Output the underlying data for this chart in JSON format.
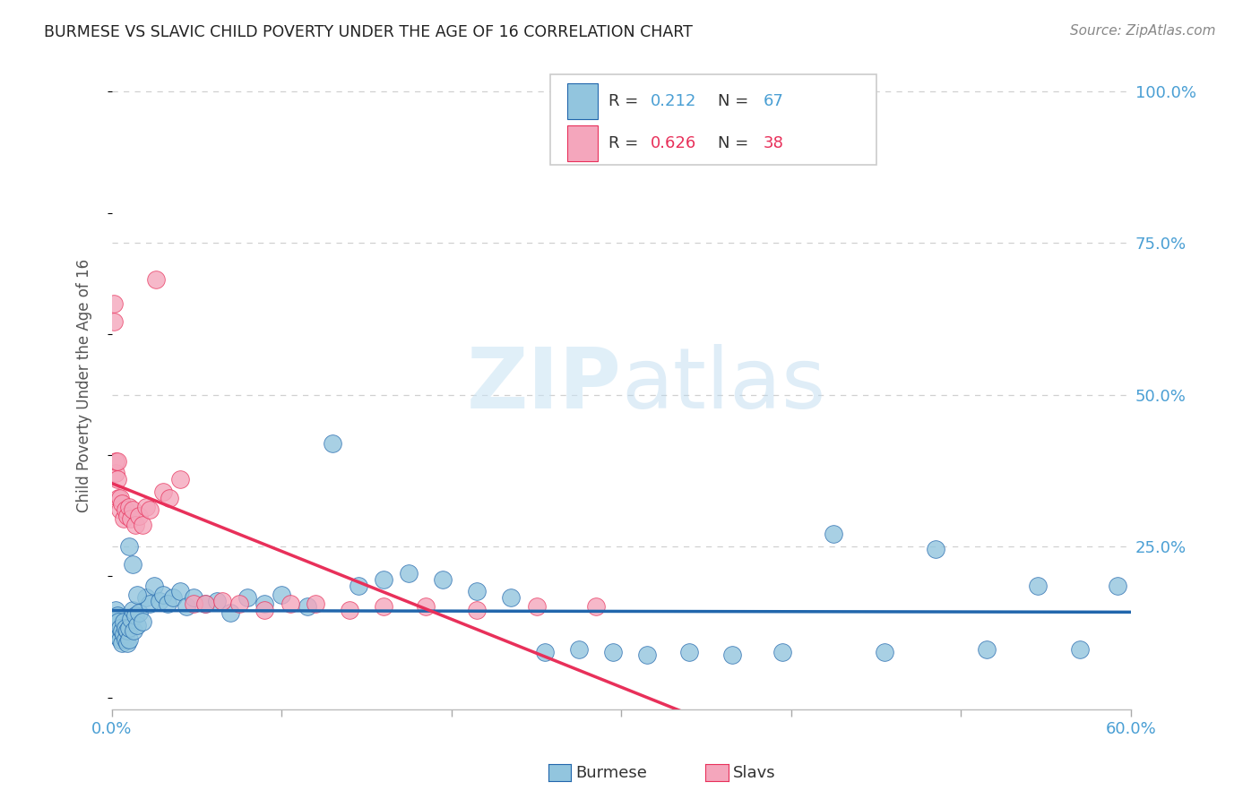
{
  "title": "BURMESE VS SLAVIC CHILD POVERTY UNDER THE AGE OF 16 CORRELATION CHART",
  "source": "Source: ZipAtlas.com",
  "ylabel": "Child Poverty Under the Age of 16",
  "burmese_color": "#92c5de",
  "slavic_color": "#f4a6bc",
  "burmese_line_color": "#2166ac",
  "slavic_line_color": "#e8305a",
  "burmese_R": 0.212,
  "burmese_N": 67,
  "slavic_R": 0.626,
  "slavic_N": 38,
  "watermark_color": "#d6eaf8",
  "background_color": "#ffffff",
  "grid_color": "#d0d0d0",
  "tick_color": "#4a9fd4",
  "xlim": [
    0.0,
    0.6
  ],
  "ylim": [
    -0.02,
    1.05
  ],
  "burmese_x": [
    0.001,
    0.002,
    0.002,
    0.003,
    0.003,
    0.004,
    0.004,
    0.005,
    0.005,
    0.006,
    0.006,
    0.007,
    0.007,
    0.008,
    0.008,
    0.009,
    0.009,
    0.01,
    0.01,
    0.011,
    0.012,
    0.013,
    0.014,
    0.015,
    0.016,
    0.018,
    0.02,
    0.022,
    0.025,
    0.028,
    0.03,
    0.033,
    0.036,
    0.04,
    0.044,
    0.048,
    0.055,
    0.062,
    0.07,
    0.08,
    0.09,
    0.1,
    0.115,
    0.13,
    0.145,
    0.16,
    0.175,
    0.195,
    0.215,
    0.235,
    0.255,
    0.275,
    0.295,
    0.315,
    0.34,
    0.365,
    0.395,
    0.425,
    0.455,
    0.485,
    0.515,
    0.545,
    0.57,
    0.592,
    0.01,
    0.012,
    0.015
  ],
  "burmese_y": [
    0.13,
    0.12,
    0.145,
    0.11,
    0.135,
    0.1,
    0.125,
    0.095,
    0.115,
    0.09,
    0.11,
    0.105,
    0.125,
    0.095,
    0.115,
    0.09,
    0.11,
    0.095,
    0.115,
    0.13,
    0.145,
    0.11,
    0.135,
    0.12,
    0.14,
    0.125,
    0.165,
    0.155,
    0.185,
    0.16,
    0.17,
    0.155,
    0.165,
    0.175,
    0.15,
    0.165,
    0.155,
    0.16,
    0.14,
    0.165,
    0.155,
    0.17,
    0.15,
    0.42,
    0.185,
    0.195,
    0.205,
    0.195,
    0.175,
    0.165,
    0.075,
    0.08,
    0.075,
    0.07,
    0.075,
    0.07,
    0.075,
    0.27,
    0.075,
    0.245,
    0.08,
    0.185,
    0.08,
    0.185,
    0.25,
    0.22,
    0.17
  ],
  "slavic_x": [
    0.001,
    0.001,
    0.002,
    0.002,
    0.003,
    0.003,
    0.004,
    0.005,
    0.005,
    0.006,
    0.007,
    0.008,
    0.009,
    0.01,
    0.011,
    0.012,
    0.014,
    0.016,
    0.018,
    0.02,
    0.022,
    0.026,
    0.03,
    0.034,
    0.04,
    0.048,
    0.055,
    0.065,
    0.075,
    0.09,
    0.105,
    0.12,
    0.14,
    0.16,
    0.185,
    0.215,
    0.25,
    0.285
  ],
  "slavic_y": [
    0.62,
    0.65,
    0.37,
    0.39,
    0.36,
    0.39,
    0.33,
    0.31,
    0.33,
    0.32,
    0.295,
    0.31,
    0.3,
    0.315,
    0.295,
    0.31,
    0.285,
    0.3,
    0.285,
    0.315,
    0.31,
    0.69,
    0.34,
    0.33,
    0.36,
    0.155,
    0.155,
    0.16,
    0.155,
    0.145,
    0.155,
    0.155,
    0.145,
    0.15,
    0.15,
    0.145,
    0.15,
    0.15
  ]
}
